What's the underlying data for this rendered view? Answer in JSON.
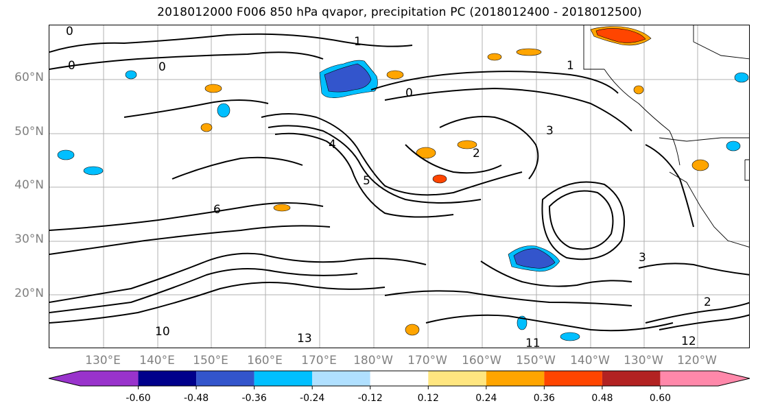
{
  "title": "2018012000 F006 850 hPa qvapor, precipitation PC (2018012400 - 2018012500)",
  "map": {
    "lat_labels": [
      "60°N",
      "50°N",
      "40°N",
      "30°N",
      "20°N"
    ],
    "lon_labels": [
      "130°E",
      "140°E",
      "150°E",
      "160°E",
      "170°E",
      "180°W",
      "170°W",
      "160°W",
      "150°W",
      "140°W",
      "130°W",
      "120°W"
    ],
    "contour_labels": [
      "0",
      "0",
      "0",
      "0",
      "1",
      "1",
      "2",
      "2",
      "3",
      "3",
      "4",
      "5",
      "6",
      "10",
      "11",
      "12",
      "13"
    ]
  },
  "colorbar": {
    "tick_labels": [
      "-0.60",
      "-0.48",
      "-0.36",
      "-0.24",
      "-0.12",
      "0.12",
      "0.24",
      "0.36",
      "0.48",
      "0.60"
    ],
    "colors": [
      "#9933cc",
      "#00008b",
      "#3355cc",
      "#00bfff",
      "#b0e0ff",
      "#ffffff",
      "#ffe680",
      "#ffa500",
      "#ff4500",
      "#b22222",
      "#ff88aa"
    ]
  },
  "precip_colors": {
    "strong_negative": "#3355cc",
    "negative": "#00bfff",
    "weak_negative": "#b0e0ff",
    "weak_positive": "#ffe680",
    "positive": "#ffa500",
    "strong_positive": "#ff4500"
  }
}
